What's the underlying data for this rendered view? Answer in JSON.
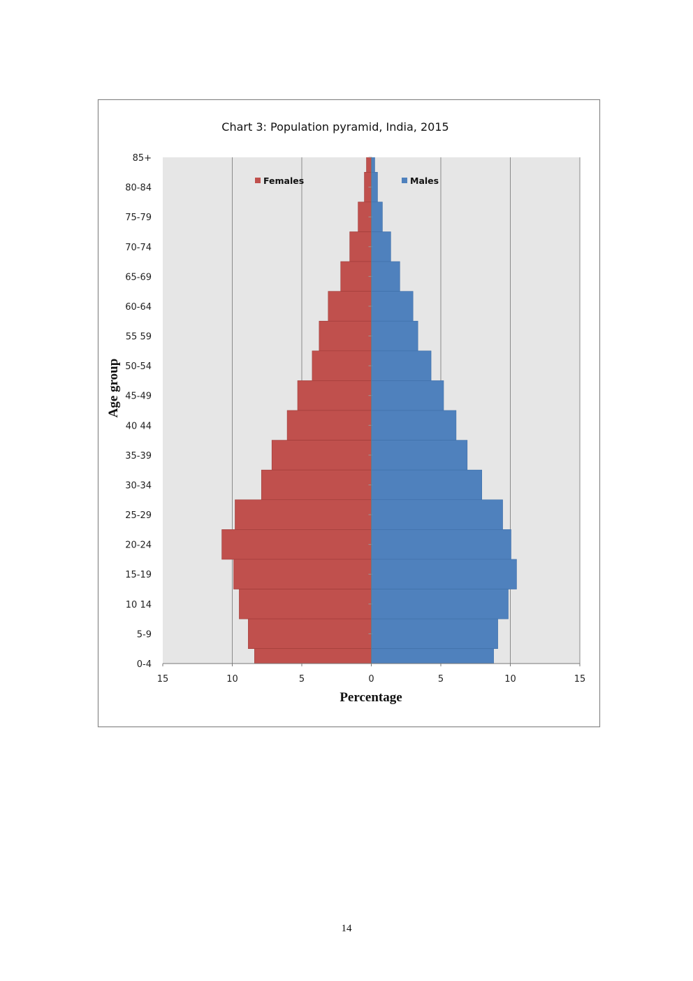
{
  "page_number": "14",
  "chart_data": {
    "type": "bar",
    "orientation": "horizontal",
    "title": "Chart 3: Population pyramid, India, 2015",
    "xlabel": "Percentage",
    "ylabel": "Age group",
    "xlim": [
      -15,
      15
    ],
    "xticks": [
      "15",
      "10",
      "5",
      "0",
      "5",
      "10",
      "15"
    ],
    "grid": true,
    "legend_placement": "top",
    "categories": [
      "85+",
      "80-84",
      "75-79",
      "70-74",
      "65-69",
      "60-64",
      "55 59",
      "50-54",
      "45-49",
      "40 44",
      "35-39",
      "30-34",
      "25-29",
      "20-24",
      "15-19",
      "10 14",
      "5-9",
      "0-4"
    ],
    "series": [
      {
        "name": "Females",
        "color": "#c0504d",
        "values": [
          0.35,
          0.5,
          0.95,
          1.55,
          2.2,
          3.1,
          3.75,
          4.25,
          5.3,
          6.05,
          7.15,
          7.9,
          9.8,
          10.75,
          9.9,
          9.5,
          8.85,
          8.4
        ]
      },
      {
        "name": "Males",
        "color": "#4f81bd",
        "values": [
          0.25,
          0.45,
          0.8,
          1.4,
          2.05,
          3.0,
          3.35,
          4.3,
          5.2,
          6.1,
          6.9,
          7.95,
          9.45,
          10.05,
          10.45,
          9.85,
          9.1,
          8.8
        ]
      }
    ],
    "plot_background": "#e6e6e6"
  }
}
